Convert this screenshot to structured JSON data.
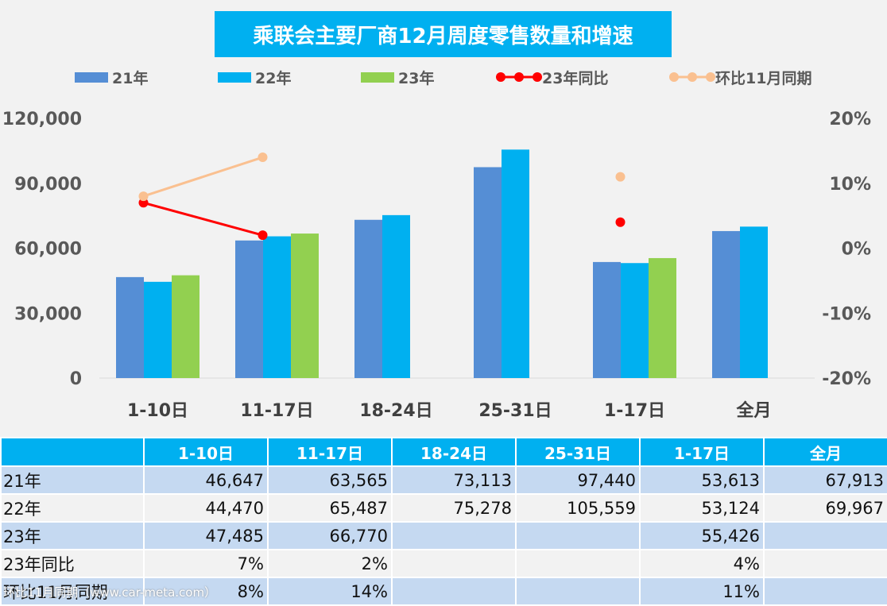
{
  "chart_data": {
    "type": "bar",
    "title": "乘联会主要厂商12月周度零售数量和增速",
    "categories": [
      "1-10日",
      "11-17日",
      "18-24日",
      "25-31日",
      "1-17日",
      "全月"
    ],
    "series": [
      {
        "name": "21年",
        "type": "bar",
        "color": "#558ed5",
        "values": [
          46647,
          63565,
          73113,
          97440,
          53613,
          67913
        ]
      },
      {
        "name": "22年",
        "type": "bar",
        "color": "#00b0f0",
        "values": [
          44470,
          65487,
          75278,
          105559,
          53124,
          69967
        ]
      },
      {
        "name": "23年",
        "type": "bar",
        "color": "#92d050",
        "values": [
          47485,
          66770,
          null,
          null,
          55426,
          null
        ]
      },
      {
        "name": "23年同比",
        "type": "line",
        "axis": "right",
        "color": "#ff0000",
        "values": [
          0.07,
          0.02,
          null,
          null,
          0.04,
          null
        ]
      },
      {
        "name": "环比11月同期",
        "type": "line",
        "axis": "right",
        "color": "#fac090",
        "values": [
          0.08,
          0.14,
          null,
          null,
          0.11,
          null
        ]
      }
    ],
    "y_left": {
      "range": [
        0,
        120000
      ],
      "ticks": [
        "0",
        "30,000",
        "60,000",
        "90,000",
        "120,000"
      ]
    },
    "y_right": {
      "range": [
        -0.2,
        0.2
      ],
      "ticks": [
        "-20%",
        "-10%",
        "0%",
        "10%",
        "20%"
      ]
    },
    "legend_position": "top",
    "grid": false
  },
  "legend": [
    "21年",
    "22年",
    "23年",
    "23年同比",
    "环比11月同期"
  ],
  "table": {
    "headers": [
      "",
      "1-10日",
      "11-17日",
      "18-24日",
      "25-31日",
      "1-17日",
      "全月"
    ],
    "rows": [
      [
        "21年",
        "46,647",
        "63,565",
        "73,113",
        "97,440",
        "53,613",
        "67,913"
      ],
      [
        "22年",
        "44,470",
        "65,487",
        "75,278",
        "105,559",
        "53,124",
        "69,967"
      ],
      [
        "23年",
        "47,485",
        "66,770",
        "",
        "",
        "55,426",
        ""
      ],
      [
        "23年同比",
        "7%",
        "2%",
        "",
        "",
        "4%",
        ""
      ],
      [
        "环比11月同期",
        "8%",
        "14%",
        "",
        "",
        "11%",
        ""
      ]
    ]
  },
  "watermark": "环比11月同期（www.car-meta.com）"
}
